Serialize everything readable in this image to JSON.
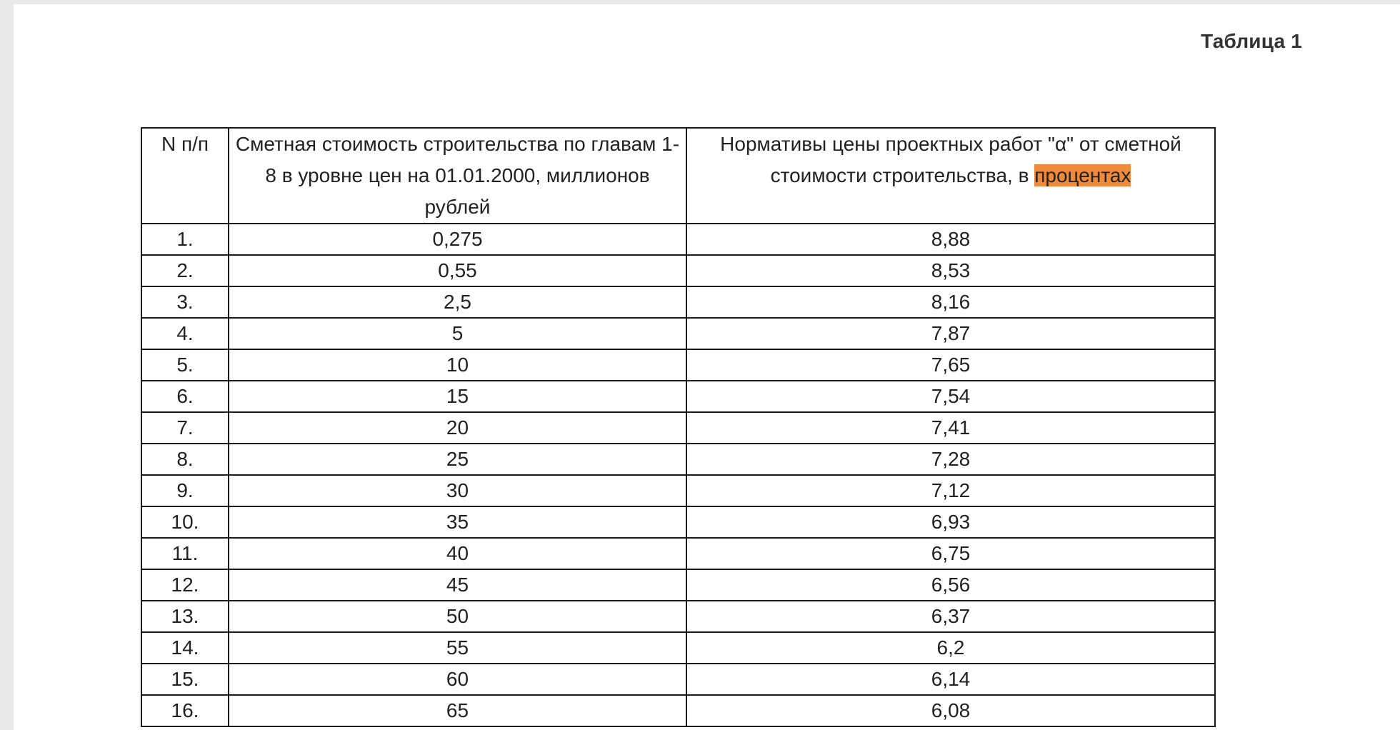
{
  "caption": "Таблица 1",
  "table": {
    "headers": {
      "num": "N п/п",
      "cost": "Сметная стоимость строительства по главам 1-8 в уровне цен на 01.01.2000, миллионов рублей",
      "norm_before_highlight": "Нормативы цены проектных работ \"α\" от сметной стоимости строительства, в ",
      "norm_highlight": "процентах"
    },
    "rows": [
      {
        "n": "1.",
        "cost": "0,275",
        "norm": "8,88"
      },
      {
        "n": "2.",
        "cost": "0,55",
        "norm": "8,53"
      },
      {
        "n": "3.",
        "cost": "2,5",
        "norm": "8,16"
      },
      {
        "n": "4.",
        "cost": "5",
        "norm": "7,87"
      },
      {
        "n": "5.",
        "cost": "10",
        "norm": "7,65"
      },
      {
        "n": "6.",
        "cost": "15",
        "norm": "7,54"
      },
      {
        "n": "7.",
        "cost": "20",
        "norm": "7,41"
      },
      {
        "n": "8.",
        "cost": "25",
        "norm": "7,28"
      },
      {
        "n": "9.",
        "cost": "30",
        "norm": "7,12"
      },
      {
        "n": "10.",
        "cost": "35",
        "norm": "6,93"
      },
      {
        "n": "11.",
        "cost": "40",
        "norm": "6,75"
      },
      {
        "n": "12.",
        "cost": "45",
        "norm": "6,56"
      },
      {
        "n": "13.",
        "cost": "50",
        "norm": "6,37"
      },
      {
        "n": "14.",
        "cost": "55",
        "norm": "6,2"
      },
      {
        "n": "15.",
        "cost": "60",
        "norm": "6,14"
      },
      {
        "n": "16.",
        "cost": "65",
        "norm": "6,08"
      }
    ]
  },
  "colors": {
    "highlight": "#f08a3a",
    "page_bg": "#ffffff",
    "canvas_bg": "#e9e9e9"
  }
}
